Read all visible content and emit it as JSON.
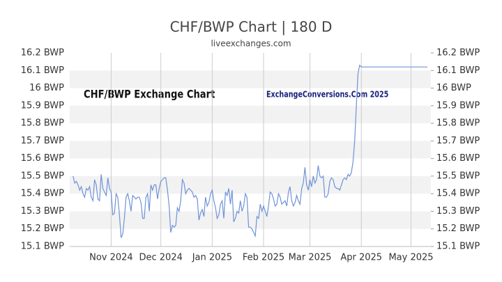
{
  "chart_data": {
    "type": "line",
    "title": "CHF/BWP Chart | 180 D",
    "subtitle": "liveexchanges.com",
    "annotations": [
      "CHF/BWP Exchange Chart",
      "ExchangeConversions.Com 2025"
    ],
    "xlim": [
      0,
      218
    ],
    "xticks": [
      {
        "value": 25,
        "label": "Nov 2024"
      },
      {
        "value": 55,
        "label": "Dec 2024"
      },
      {
        "value": 86,
        "label": "Jan 2025"
      },
      {
        "value": 117,
        "label": "Feb 2025"
      },
      {
        "value": 145,
        "label": "Mar 2025"
      },
      {
        "value": 176,
        "label": "Apr 2025"
      },
      {
        "value": 206,
        "label": "May 2025"
      }
    ],
    "ylim": [
      15.1,
      16.2
    ],
    "yticks": [
      {
        "value": 15.1,
        "label": "15.1 BWP"
      },
      {
        "value": 15.2,
        "label": "15.2 BWP"
      },
      {
        "value": 15.3,
        "label": "15.3 BWP"
      },
      {
        "value": 15.4,
        "label": "15.4 BWP"
      },
      {
        "value": 15.5,
        "label": "15.5 BWP"
      },
      {
        "value": 15.6,
        "label": "15.6 BWP"
      },
      {
        "value": 15.7,
        "label": "15.7 BWP"
      },
      {
        "value": 15.8,
        "label": "15.8 BWP"
      },
      {
        "value": 15.9,
        "label": "15.9 BWP"
      },
      {
        "value": 16,
        "label": "16 BWP"
      },
      {
        "value": 16.1,
        "label": "16.1 BWP"
      },
      {
        "value": 16.2,
        "label": "16.2 BWP"
      }
    ],
    "grid": true,
    "series": [
      {
        "color": "#6f92d8",
        "x": [
          2,
          3,
          4,
          5,
          6,
          7,
          8,
          9,
          10,
          11,
          12,
          13,
          14,
          15,
          16,
          17,
          18,
          19,
          20,
          21,
          22,
          23,
          24,
          25,
          26,
          27,
          28,
          29,
          30,
          31,
          32,
          33,
          34,
          35,
          36,
          37,
          38,
          39,
          40,
          41,
          42,
          43,
          44,
          45,
          46,
          47,
          48,
          49,
          50,
          51,
          52,
          53,
          54,
          55,
          56,
          57,
          58,
          59,
          60,
          61,
          62,
          63,
          64,
          65,
          66,
          67,
          68,
          69,
          70,
          71,
          72,
          73,
          74,
          75,
          76,
          77,
          78,
          79,
          80,
          81,
          82,
          83,
          84,
          85,
          86,
          87,
          88,
          89,
          90,
          91,
          92,
          93,
          94,
          95,
          96,
          97,
          98,
          99,
          100,
          101,
          102,
          103,
          104,
          105,
          106,
          107,
          108,
          109,
          110,
          111,
          112,
          113,
          114,
          115,
          116,
          117,
          118,
          119,
          120,
          121,
          122,
          123,
          124,
          125,
          126,
          127,
          128,
          129,
          130,
          131,
          132,
          133,
          134,
          135,
          136,
          137,
          138,
          139,
          140,
          141,
          142,
          143,
          144,
          145,
          146,
          147,
          148,
          149,
          150,
          151,
          152,
          153,
          154,
          155,
          156,
          157,
          158,
          159,
          160,
          161,
          162,
          163,
          164,
          165,
          166,
          167,
          168,
          169,
          170,
          171,
          172,
          173,
          174,
          175,
          176,
          186,
          196,
          206,
          216
        ],
        "values": [
          15.5,
          15.46,
          15.47,
          15.45,
          15.42,
          15.44,
          15.4,
          15.38,
          15.43,
          15.42,
          15.44,
          15.38,
          15.36,
          15.48,
          15.45,
          15.37,
          15.36,
          15.51,
          15.43,
          15.41,
          15.39,
          15.49,
          15.43,
          15.41,
          15.28,
          15.29,
          15.4,
          15.38,
          15.28,
          15.15,
          15.17,
          15.26,
          15.38,
          15.4,
          15.36,
          15.3,
          15.39,
          15.38,
          15.37,
          15.38,
          15.38,
          15.35,
          15.26,
          15.26,
          15.38,
          15.4,
          15.3,
          15.45,
          15.42,
          15.45,
          15.45,
          15.37,
          15.43,
          15.47,
          15.48,
          15.49,
          15.49,
          15.42,
          15.33,
          15.18,
          15.22,
          15.21,
          15.22,
          15.32,
          15.3,
          15.36,
          15.48,
          15.46,
          15.4,
          15.42,
          15.43,
          15.42,
          15.41,
          15.38,
          15.39,
          15.37,
          15.25,
          15.29,
          15.31,
          15.27,
          15.38,
          15.33,
          15.35,
          15.4,
          15.42,
          15.36,
          15.32,
          15.26,
          15.28,
          15.34,
          15.36,
          15.26,
          15.41,
          15.39,
          15.43,
          15.34,
          15.42,
          15.24,
          15.26,
          15.3,
          15.29,
          15.36,
          15.3,
          15.33,
          15.4,
          15.38,
          15.21,
          15.21,
          15.2,
          15.18,
          15.16,
          15.27,
          15.26,
          15.34,
          15.3,
          15.33,
          15.3,
          15.27,
          15.33,
          15.41,
          15.4,
          15.37,
          15.33,
          15.34,
          15.4,
          15.38,
          15.34,
          15.35,
          15.36,
          15.33,
          15.41,
          15.44,
          15.36,
          15.33,
          15.35,
          15.39,
          15.36,
          15.34,
          15.43,
          15.46,
          15.55,
          15.45,
          15.42,
          15.48,
          15.44,
          15.5,
          15.46,
          15.48,
          15.56,
          15.5,
          15.49,
          15.5,
          15.38,
          15.38,
          15.4,
          15.47,
          15.49,
          15.48,
          15.44,
          15.43,
          15.43,
          15.42,
          15.45,
          15.48,
          15.49,
          15.48,
          15.51,
          15.5,
          15.52,
          15.58,
          15.7,
          15.9,
          16.08,
          16.13,
          16.12,
          16.12,
          16.12,
          16.12,
          16.12
        ]
      }
    ]
  }
}
